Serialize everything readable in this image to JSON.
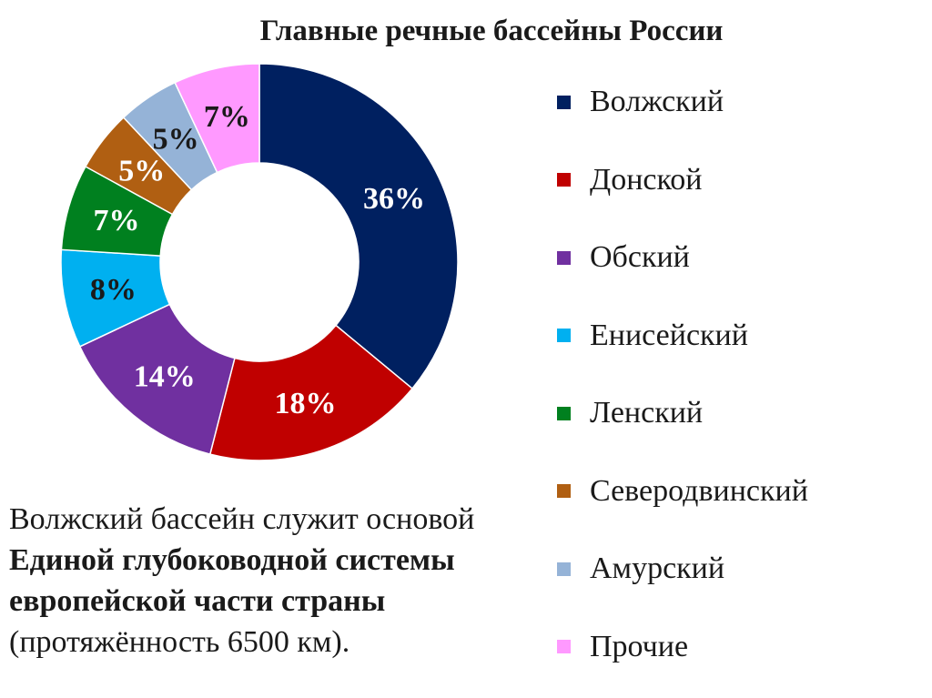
{
  "title": "Главные речные бассейны России",
  "chart_data": {
    "type": "pie",
    "title": "Главные речные бассейны России",
    "categories": [
      "Волжский",
      "Донской",
      "Обский",
      "Енисейский",
      "Ленский",
      "Северодвинский",
      "Амурский",
      "Прочие"
    ],
    "values": [
      36,
      18,
      14,
      8,
      7,
      5,
      5,
      7
    ],
    "value_labels": [
      "36%",
      "18%",
      "14%",
      "8%",
      "7%",
      "5%",
      "5%",
      "7%"
    ],
    "colors": [
      "#002060",
      "#C00000",
      "#7030A0",
      "#00B0F0",
      "#00801F",
      "#B05F12",
      "#95B3D7",
      "#FF99FF"
    ],
    "label_colors": [
      "#ffffff",
      "#ffffff",
      "#ffffff",
      "#1a1a1a",
      "#ffffff",
      "#ffffff",
      "#1a1a1a",
      "#1a1a1a"
    ],
    "hole": 0.5,
    "start": "12 o'clock",
    "direction": "clockwise",
    "legend_position": "right"
  },
  "legend": {
    "items": [
      {
        "label": "Волжский",
        "color": "#002060"
      },
      {
        "label": "Донской",
        "color": "#C00000"
      },
      {
        "label": "Обский",
        "color": "#7030A0"
      },
      {
        "label": "Енисейский",
        "color": "#00B0F0"
      },
      {
        "label": "Ленский",
        "color": "#00801F"
      },
      {
        "label": "Северодвинский",
        "color": "#B05F12"
      },
      {
        "label": "Амурский",
        "color": "#95B3D7"
      },
      {
        "label": "Прочие",
        "color": "#FF99FF"
      }
    ]
  },
  "note": {
    "part1": "Волжский бассейн служит основой ",
    "bold": "Единой глубоководной системы европейской части страны",
    "part2": " (протяжённость 6500 км)."
  }
}
